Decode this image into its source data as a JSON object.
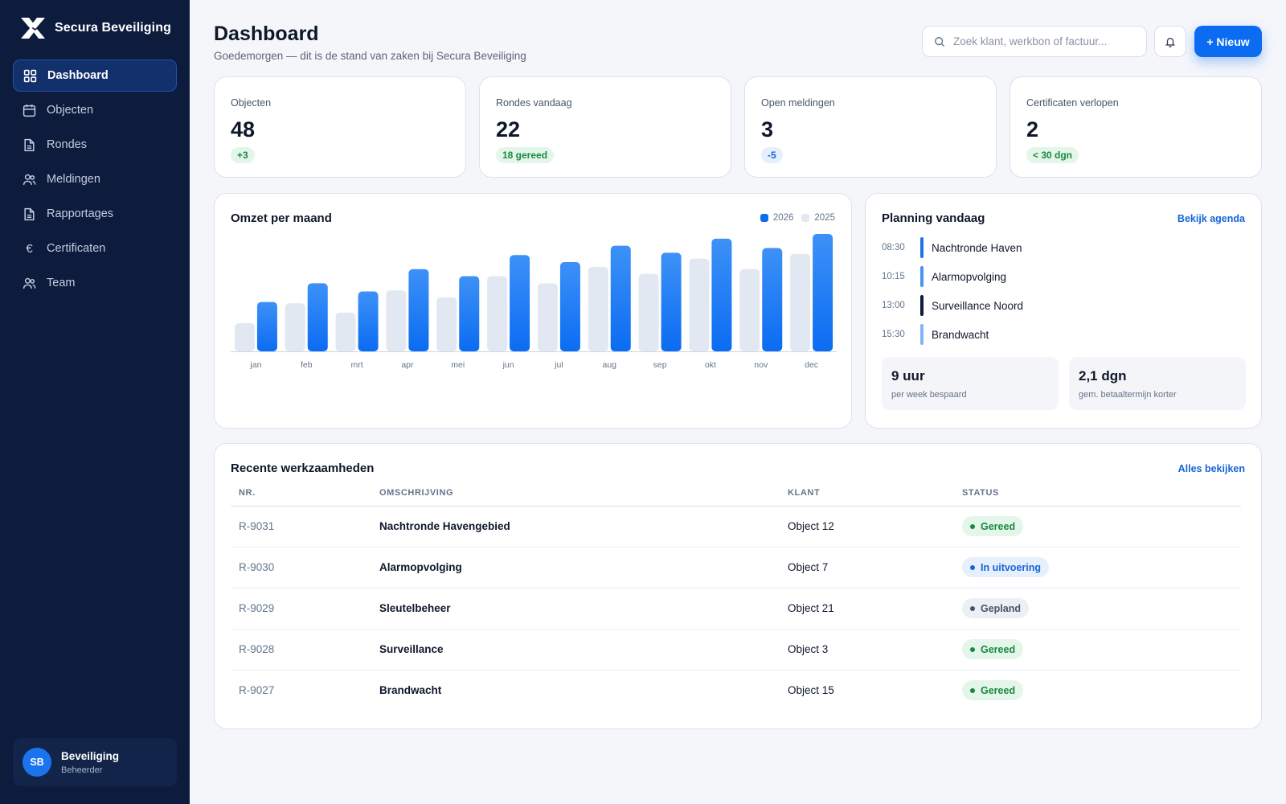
{
  "brand": {
    "name": "Secura Beveiliging"
  },
  "sidebar": {
    "items": [
      {
        "label": "Dashboard",
        "icon": "grid-icon",
        "active": true
      },
      {
        "label": "Objecten",
        "icon": "calendar-icon",
        "active": false
      },
      {
        "label": "Rondes",
        "icon": "document-icon",
        "active": false
      },
      {
        "label": "Meldingen",
        "icon": "users-icon",
        "active": false
      },
      {
        "label": "Rapportages",
        "icon": "document-icon",
        "active": false
      },
      {
        "label": "Certificaten",
        "icon": "euro-icon",
        "active": false
      },
      {
        "label": "Team",
        "icon": "users-icon",
        "active": false
      }
    ],
    "user": {
      "initials": "SB",
      "name": "Beveiliging",
      "role": "Beheerder"
    }
  },
  "header": {
    "title": "Dashboard",
    "subtitle": "Goedemorgen — dit is de stand van zaken bij Secura Beveiliging",
    "search_placeholder": "Zoek klant, werkbon of factuur...",
    "new_label": "+ Nieuw"
  },
  "stats": [
    {
      "label": "Objecten",
      "value": "48",
      "badge": "+3",
      "badge_tone": "green"
    },
    {
      "label": "Rondes vandaag",
      "value": "22",
      "badge": "18 gereed",
      "badge_tone": "green"
    },
    {
      "label": "Open meldingen",
      "value": "3",
      "badge": "-5",
      "badge_tone": "blue"
    },
    {
      "label": "Certificaten verlopen",
      "value": "2",
      "badge": "< 30 dgn",
      "badge_tone": "green"
    }
  ],
  "revenue": {
    "title": "Omzet per maand",
    "legend": [
      "2026",
      "2025"
    ],
    "colors": {
      "current": "#0b6cf2",
      "previous": "#e2e8f2"
    }
  },
  "chart_data": {
    "type": "bar",
    "title": "Omzet per maand",
    "categories": [
      "jan",
      "feb",
      "mrt",
      "apr",
      "mei",
      "jun",
      "jul",
      "aug",
      "sep",
      "okt",
      "nov",
      "dec"
    ],
    "series": [
      {
        "name": "2025",
        "values": [
          24,
          41,
          33,
          52,
          46,
          64,
          58,
          72,
          66,
          79,
          70,
          83
        ]
      },
      {
        "name": "2026",
        "values": [
          42,
          58,
          51,
          70,
          64,
          82,
          76,
          90,
          84,
          96,
          88,
          100
        ]
      }
    ],
    "ylim": [
      0,
      100
    ],
    "grid": false,
    "legend_position": "top-right"
  },
  "planning": {
    "title": "Planning vandaag",
    "link": "Bekijk agenda",
    "items": [
      {
        "time": "08:30",
        "title": "Nachtronde Haven",
        "color": "#1a74ee"
      },
      {
        "time": "10:15",
        "title": "Alarmopvolging",
        "color": "#4a93f0"
      },
      {
        "time": "13:00",
        "title": "Surveillance Noord",
        "color": "#0d1b3d"
      },
      {
        "time": "15:30",
        "title": "Brandwacht",
        "color": "#7fb4f5"
      }
    ],
    "metrics": [
      {
        "value": "9 uur",
        "label": "per week bespaard"
      },
      {
        "value": "2,1 dgn",
        "label": "gem. betaaltermijn korter"
      }
    ]
  },
  "recent": {
    "title": "Recente werkzaamheden",
    "link": "Alles bekijken",
    "columns": [
      "NR.",
      "OMSCHRIJVING",
      "KLANT",
      "STATUS"
    ],
    "rows": [
      {
        "nr": "R-9031",
        "desc": "Nachtronde Havengebied",
        "client": "Object 12",
        "status": "Gereed",
        "tone": "gereed"
      },
      {
        "nr": "R-9030",
        "desc": "Alarmopvolging",
        "client": "Object 7",
        "status": "In uitvoering",
        "tone": "uitv"
      },
      {
        "nr": "R-9029",
        "desc": "Sleutelbeheer",
        "client": "Object 21",
        "status": "Gepland",
        "tone": "gepland"
      },
      {
        "nr": "R-9028",
        "desc": "Surveillance",
        "client": "Object 3",
        "status": "Gereed",
        "tone": "gereed"
      },
      {
        "nr": "R-9027",
        "desc": "Brandwacht",
        "client": "Object 15",
        "status": "Gereed",
        "tone": "gereed"
      }
    ]
  }
}
